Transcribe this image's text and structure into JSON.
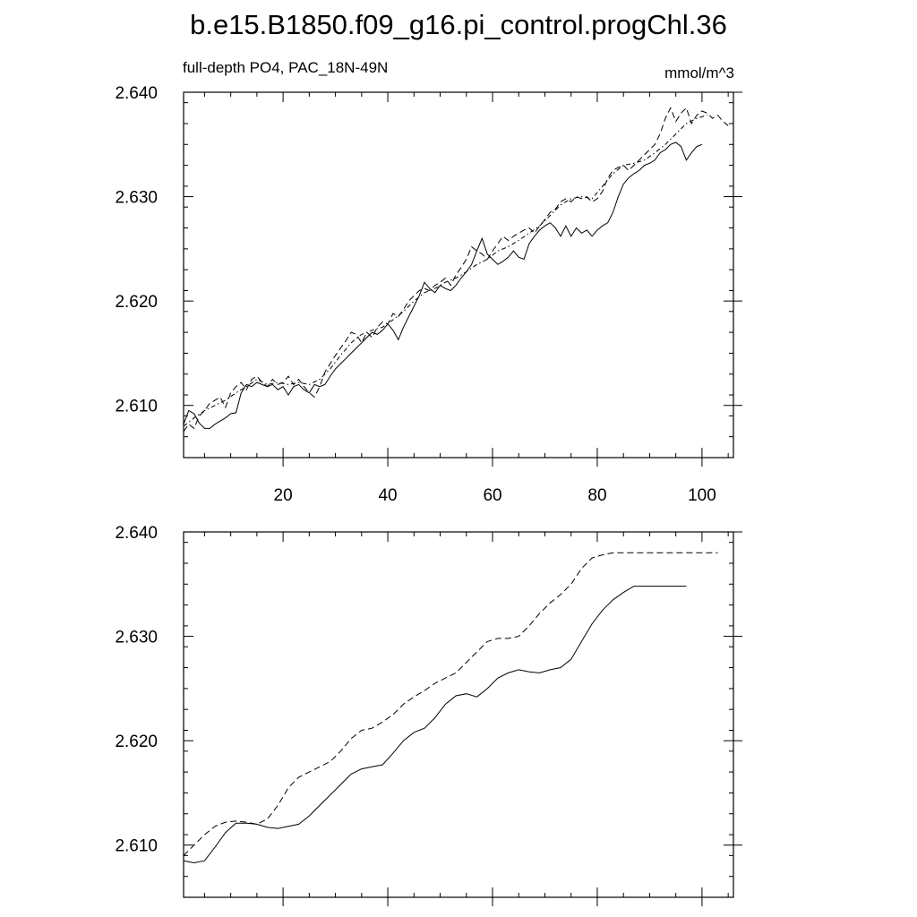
{
  "title": "b.e15.B1850.f09_g16.pi_control.progChl.36",
  "chart_data": [
    {
      "type": "line",
      "subtitle_left": "full-depth PO4, PAC_18N-49N",
      "subtitle_right": "mmol/m^3",
      "xlim": [
        1,
        106
      ],
      "ylim": [
        2.605,
        2.64
      ],
      "x_ticks": [
        20,
        40,
        60,
        80,
        100
      ],
      "x_tick_labels": [
        "20",
        "40",
        "60",
        "80",
        "100"
      ],
      "y_ticks": [
        2.61,
        2.62,
        2.63,
        2.64
      ],
      "y_tick_labels": [
        "2.610",
        "2.620",
        "2.630",
        "2.640"
      ],
      "series": [
        {
          "style": "solid",
          "x": [
            1,
            2,
            3,
            4,
            5,
            6,
            7,
            8,
            9,
            10,
            11,
            12,
            13,
            14,
            15,
            16,
            17,
            18,
            19,
            20,
            21,
            22,
            23,
            24,
            25,
            26,
            27,
            28,
            29,
            30,
            31,
            32,
            33,
            34,
            35,
            36,
            37,
            38,
            39,
            40,
            41,
            42,
            43,
            44,
            45,
            46,
            47,
            48,
            49,
            50,
            51,
            52,
            53,
            54,
            55,
            56,
            57,
            58,
            59,
            60,
            61,
            62,
            63,
            64,
            65,
            66,
            67,
            68,
            69,
            70,
            71,
            72,
            73,
            74,
            75,
            76,
            77,
            78,
            79,
            80,
            81,
            82,
            83,
            84,
            85,
            86,
            87,
            88,
            89,
            90,
            91,
            92,
            93,
            94,
            95,
            96,
            97,
            98,
            99,
            100
          ],
          "y": [
            2.6082,
            2.6095,
            2.6092,
            2.6083,
            2.6078,
            2.6078,
            2.6082,
            2.6085,
            2.6088,
            2.6092,
            2.6093,
            2.6112,
            2.612,
            2.6118,
            2.6122,
            2.612,
            2.6118,
            2.612,
            2.6115,
            2.6118,
            2.611,
            2.6118,
            2.612,
            2.6115,
            2.6112,
            2.612,
            2.6118,
            2.612,
            2.6128,
            2.6135,
            2.614,
            2.6145,
            2.615,
            2.6155,
            2.616,
            2.6165,
            2.617,
            2.6168,
            2.6172,
            2.6178,
            2.6172,
            2.6163,
            2.6175,
            2.6185,
            2.6195,
            2.6205,
            2.6218,
            2.6212,
            2.6208,
            2.6215,
            2.6212,
            2.621,
            2.6215,
            2.6222,
            2.6228,
            2.6235,
            2.6248,
            2.626,
            2.6245,
            2.624,
            2.6235,
            2.6238,
            2.6242,
            2.6248,
            2.6242,
            2.624,
            2.6255,
            2.6262,
            2.6268,
            2.6272,
            2.6275,
            2.627,
            2.6262,
            2.6272,
            2.6262,
            2.627,
            2.6265,
            2.6268,
            2.6262,
            2.6268,
            2.6272,
            2.6275,
            2.6285,
            2.63,
            2.6312,
            2.6318,
            2.6322,
            2.6325,
            2.633,
            2.6332,
            2.6335,
            2.6342,
            2.6345,
            2.635,
            2.6352,
            2.6348,
            2.6335,
            2.6342,
            2.6348,
            2.635
          ]
        },
        {
          "style": "dashed",
          "x": [
            1,
            2,
            3,
            4,
            5,
            6,
            7,
            8,
            9,
            10,
            11,
            12,
            13,
            14,
            15,
            16,
            17,
            18,
            19,
            20,
            21,
            22,
            23,
            24,
            25,
            26,
            27,
            28,
            29,
            30,
            31,
            32,
            33,
            34,
            35,
            36,
            37,
            38,
            39,
            40,
            41,
            42,
            43,
            44,
            45,
            46,
            47,
            48,
            49,
            50,
            51,
            52,
            53,
            54,
            55,
            56,
            57,
            58,
            59,
            60,
            61,
            62,
            63,
            64,
            65,
            66,
            67,
            68,
            69,
            70,
            71,
            72,
            73,
            74,
            75,
            76,
            77,
            78,
            79,
            80,
            81,
            82,
            83,
            84,
            85,
            86,
            87,
            88,
            89,
            90,
            91,
            92,
            93,
            94,
            95,
            96,
            97,
            98,
            99,
            100,
            101,
            102,
            103,
            104,
            105
          ],
          "y": [
            2.6075,
            2.6082,
            2.6078,
            2.609,
            2.6095,
            2.6102,
            2.6105,
            2.6108,
            2.6098,
            2.6112,
            2.6118,
            2.6122,
            2.6115,
            2.6125,
            2.6128,
            2.6122,
            2.6118,
            2.6125,
            2.612,
            2.6122,
            2.6128,
            2.612,
            2.6125,
            2.6118,
            2.6112,
            2.6108,
            2.6118,
            2.6132,
            2.614,
            2.6148,
            2.6155,
            2.6162,
            2.617,
            2.6168,
            2.616,
            2.617,
            2.6165,
            2.6175,
            2.618,
            2.6178,
            2.6188,
            2.6185,
            2.6192,
            2.62,
            2.6205,
            2.621,
            2.6212,
            2.621,
            2.6215,
            2.6218,
            2.6222,
            2.6215,
            2.6225,
            2.6232,
            2.624,
            2.6252,
            2.6248,
            2.6245,
            2.624,
            2.6248,
            2.6255,
            2.6262,
            2.6258,
            2.6262,
            2.6265,
            2.6268,
            2.627,
            2.6265,
            2.6272,
            2.6278,
            2.6285,
            2.6288,
            2.6295,
            2.6298,
            2.6295,
            2.63,
            2.6298,
            2.63,
            2.6295,
            2.6298,
            2.6305,
            2.6318,
            2.6325,
            2.6328,
            2.633,
            2.6325,
            2.633,
            2.6335,
            2.634,
            2.6345,
            2.635,
            2.636,
            2.6375,
            2.6385,
            2.6372,
            2.638,
            2.6385,
            2.637,
            2.6378,
            2.6382,
            2.638,
            2.6375,
            2.6378,
            2.6372,
            2.6368
          ]
        },
        {
          "style": "dashdot",
          "x": [
            1,
            3,
            5,
            7,
            9,
            11,
            13,
            15,
            17,
            19,
            21,
            23,
            25,
            27,
            29,
            31,
            33,
            35,
            37,
            39,
            41,
            43,
            45,
            47,
            49,
            51,
            53,
            55,
            57,
            59,
            61,
            63,
            65,
            67,
            69,
            71,
            73,
            75,
            77,
            79,
            81,
            83,
            85,
            87,
            89,
            91,
            93,
            95,
            97,
            99,
            101
          ],
          "y": [
            2.608,
            2.6088,
            2.6095,
            2.61,
            2.6105,
            2.6112,
            2.6118,
            2.6125,
            2.612,
            2.6122,
            2.612,
            2.6122,
            2.612,
            2.6125,
            2.6135,
            2.6148,
            2.616,
            2.6168,
            2.6172,
            2.6175,
            2.6182,
            2.619,
            2.62,
            2.6208,
            2.6212,
            2.6218,
            2.6222,
            2.6228,
            2.6235,
            2.624,
            2.6248,
            2.6252,
            2.6258,
            2.6265,
            2.6272,
            2.6282,
            2.6292,
            2.6298,
            2.63,
            2.6298,
            2.631,
            2.6322,
            2.633,
            2.6332,
            2.6335,
            2.6342,
            2.635,
            2.636,
            2.637,
            2.6375,
            2.6378
          ]
        }
      ]
    },
    {
      "type": "line",
      "xlim": [
        1,
        106
      ],
      "ylim": [
        2.605,
        2.64
      ],
      "x_ticks": [
        20,
        40,
        60,
        80,
        100
      ],
      "y_ticks": [
        2.61,
        2.62,
        2.63,
        2.64
      ],
      "y_tick_labels": [
        "2.610",
        "2.620",
        "2.630",
        "2.640"
      ],
      "series": [
        {
          "style": "solid",
          "x": [
            1,
            3,
            5,
            7,
            9,
            11,
            13,
            15,
            17,
            19,
            21,
            23,
            25,
            27,
            29,
            31,
            33,
            35,
            37,
            39,
            41,
            43,
            45,
            47,
            49,
            51,
            53,
            55,
            57,
            59,
            61,
            63,
            65,
            67,
            69,
            71,
            73,
            75,
            77,
            79,
            81,
            83,
            85,
            87,
            89,
            91,
            93,
            95,
            97
          ],
          "y": [
            2.6085,
            2.6083,
            2.6085,
            2.6098,
            2.6112,
            2.6121,
            2.6121,
            2.612,
            2.6117,
            2.6116,
            2.6118,
            2.612,
            2.6128,
            2.6138,
            2.6148,
            2.6158,
            2.6168,
            2.6173,
            2.6175,
            2.6177,
            2.6188,
            2.62,
            2.6208,
            2.6212,
            2.6222,
            2.6235,
            2.6243,
            2.6245,
            2.6242,
            2.625,
            2.626,
            2.6265,
            2.6268,
            2.6266,
            2.6265,
            2.6268,
            2.627,
            2.6278,
            2.6295,
            2.6312,
            2.6325,
            2.6335,
            2.6342,
            2.6348,
            2.6348,
            2.6348,
            2.6348,
            2.6348,
            2.6348
          ]
        },
        {
          "style": "dashed",
          "x": [
            1,
            3,
            5,
            7,
            9,
            11,
            13,
            15,
            17,
            19,
            21,
            23,
            25,
            27,
            29,
            31,
            33,
            35,
            37,
            39,
            41,
            43,
            45,
            47,
            49,
            51,
            53,
            55,
            57,
            59,
            61,
            63,
            65,
            67,
            69,
            71,
            73,
            75,
            77,
            79,
            81,
            83,
            85,
            87,
            89,
            91,
            93,
            95,
            97,
            99,
            101,
            103
          ],
          "y": [
            2.609,
            2.61,
            2.611,
            2.6118,
            2.6122,
            2.6123,
            2.6122,
            2.612,
            2.6125,
            2.6138,
            2.6155,
            2.6165,
            2.617,
            2.6175,
            2.618,
            2.619,
            2.6202,
            2.621,
            2.6212,
            2.6218,
            2.6225,
            2.6235,
            2.6242,
            2.6248,
            2.6255,
            2.626,
            2.6265,
            2.6275,
            2.6285,
            2.6295,
            2.6298,
            2.6298,
            2.63,
            2.631,
            2.6322,
            2.6332,
            2.634,
            2.635,
            2.6365,
            2.6375,
            2.6378,
            2.638,
            2.638,
            2.638,
            2.638,
            2.638,
            2.638,
            2.638,
            2.638,
            2.638,
            2.638,
            2.638
          ]
        }
      ]
    }
  ]
}
